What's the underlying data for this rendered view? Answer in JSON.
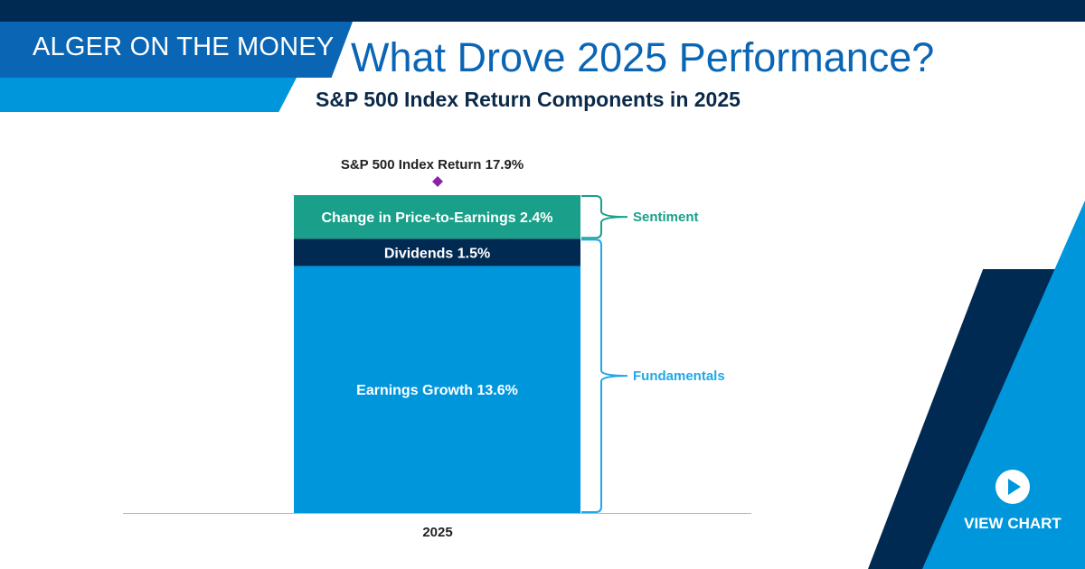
{
  "header": {
    "brand": "ALGER ON THE MONEY",
    "title": "What Drove 2025 Performance?",
    "subtitle": "S&P 500 Index Return Components in 2025"
  },
  "cta": {
    "label": "VIEW CHART",
    "icon": "play-icon"
  },
  "colors": {
    "navy": "#012a52",
    "royal_blue": "#0a66b5",
    "sky_blue": "#0096dc",
    "teal": "#1aa08a",
    "diamond": "#8b22a8"
  },
  "chart_data": {
    "type": "bar",
    "stacked": true,
    "categories": [
      "2025"
    ],
    "ylim": [
      0,
      18
    ],
    "series": [
      {
        "name": "Earnings Growth",
        "label": "Earnings Growth 13.6%",
        "values": [
          13.6
        ],
        "color": "#0096dc"
      },
      {
        "name": "Dividends",
        "label": "Dividends 1.5%",
        "values": [
          1.5
        ],
        "color": "#012a52"
      },
      {
        "name": "Change in Price-to-Earnings",
        "label": "Change in Price-to-Earnings 2.4%",
        "values": [
          2.4
        ],
        "color": "#1aa08a"
      }
    ],
    "total": {
      "label": "S&P 500 Index Return 17.9%",
      "value": 17.9,
      "marker": "diamond",
      "color": "#8b22a8"
    },
    "groups": [
      {
        "label": "Sentiment",
        "members": [
          "Change in Price-to-Earnings"
        ],
        "color": "#1aa08a"
      },
      {
        "label": "Fundamentals",
        "members": [
          "Earnings Growth",
          "Dividends"
        ],
        "color": "#21a8e6"
      }
    ],
    "grid": false,
    "legend": "none"
  }
}
